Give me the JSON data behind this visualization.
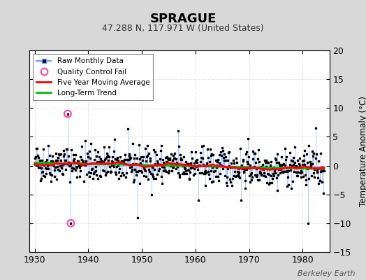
{
  "title": "SPRAGUE",
  "subtitle": "47.288 N, 117.971 W (United States)",
  "ylabel": "Temperature Anomaly (°C)",
  "watermark": "Berkeley Earth",
  "xlim": [
    1929,
    1985
  ],
  "ylim": [
    -15,
    20
  ],
  "yticks": [
    -15,
    -10,
    -5,
    0,
    5,
    10,
    15,
    20
  ],
  "xticks": [
    1930,
    1940,
    1950,
    1960,
    1970,
    1980
  ],
  "bg_color": "#d8d8d8",
  "plot_bg_color": "#ffffff",
  "raw_line_color": "#6699ff",
  "raw_marker_color": "#000000",
  "qc_fail_color": "#ff44aa",
  "moving_avg_color": "#ff0000",
  "trend_color": "#00bb00",
  "start_year": 1930,
  "end_year": 1984,
  "seed": 42
}
